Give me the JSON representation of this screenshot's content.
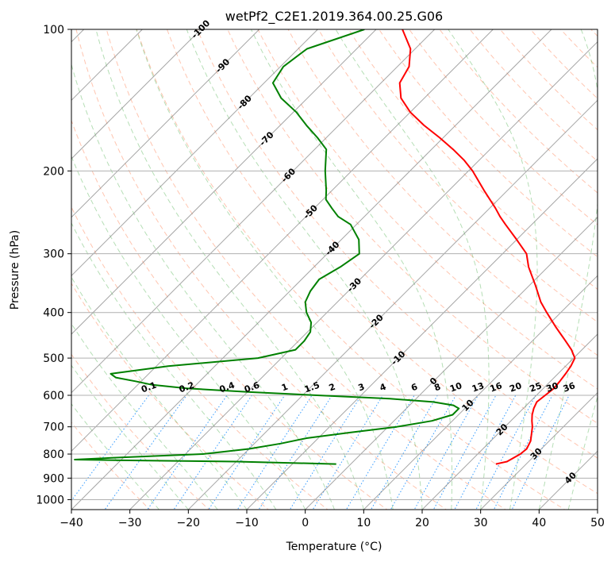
{
  "chart_data": {
    "type": "line",
    "subtype": "skew-t-log-p",
    "title": "wetPf2_C2E1.2019.364.00.25.G06",
    "xlabel": "Temperature (°C)",
    "ylabel": "Pressure (hPa)",
    "xlim": [
      -40,
      50
    ],
    "ylim": [
      1050,
      100
    ],
    "yscale": "log",
    "skew": 1.0,
    "grid": true,
    "x_ticks": [
      -40,
      -30,
      -20,
      -10,
      0,
      10,
      20,
      30,
      40,
      50
    ],
    "x_tick_labels": [
      "−40",
      "−30",
      "−20",
      "−10",
      "0",
      "10",
      "20",
      "30",
      "40",
      "50"
    ],
    "y_ticks": [
      100,
      200,
      300,
      400,
      500,
      600,
      700,
      800,
      900,
      1000
    ],
    "y_tick_labels": [
      "100",
      "200",
      "300",
      "400",
      "500",
      "600",
      "700",
      "800",
      "900",
      "1000"
    ],
    "series": [
      {
        "color": "#ff0000",
        "role": "temperature",
        "p": [
          840,
          830,
          800,
          780,
          750,
          700,
          680,
          660,
          640,
          620,
          600,
          580,
          560,
          540,
          520,
          500,
          480,
          460,
          450,
          430,
          400,
          380,
          350,
          320,
          300,
          280,
          260,
          250,
          240,
          220,
          200,
          190,
          180,
          170,
          160,
          150,
          140,
          130,
          120,
          110,
          100
        ],
        "t": [
          24.8,
          26.3,
          27.3,
          27.5,
          26.8,
          24.7,
          23.6,
          22.6,
          21.8,
          21.2,
          21.5,
          21.8,
          21.6,
          21.3,
          20.9,
          20.2,
          18.2,
          15.7,
          14.4,
          11.7,
          7.6,
          4.8,
          1.0,
          -3.3,
          -5.9,
          -10.0,
          -14.5,
          -16.8,
          -19.0,
          -24.0,
          -29.3,
          -32.5,
          -36.3,
          -40.6,
          -45.4,
          -50.0,
          -54.0,
          -56.8,
          -58.0,
          -60.8,
          -65.5
        ]
      },
      {
        "color": "#008000",
        "role": "dewpoint",
        "p": [
          840,
          830,
          825,
          822,
          815,
          800,
          780,
          760,
          740,
          720,
          700,
          680,
          660,
          640,
          630,
          620,
          610,
          600,
          590,
          580,
          570,
          560,
          550,
          540,
          520,
          500,
          480,
          460,
          440,
          420,
          400,
          380,
          360,
          340,
          320,
          300,
          280,
          260,
          250,
          240,
          230,
          220,
          200,
          180,
          170,
          160,
          150,
          140,
          130,
          120,
          110,
          100
        ],
        "td": [
          -2.5,
          -20.0,
          -40.0,
          -48.0,
          -42.0,
          -27.0,
          -20.0,
          -15.5,
          -12.0,
          -5.5,
          1.5,
          6.5,
          9.0,
          9.0,
          7.5,
          3.5,
          -4.5,
          -17.5,
          -30.0,
          -41.0,
          -47.5,
          -51.0,
          -55.0,
          -56.5,
          -48.0,
          -34.0,
          -29.0,
          -29.0,
          -29.5,
          -31.0,
          -33.5,
          -35.5,
          -36.5,
          -37.0,
          -35.5,
          -34.5,
          -37.0,
          -41.0,
          -44.5,
          -47.0,
          -49.5,
          -51.0,
          -54.5,
          -58.0,
          -61.5,
          -65.5,
          -69.5,
          -74.5,
          -78.5,
          -79.5,
          -78.5,
          -72.0
        ]
      }
    ],
    "isotherm_labels": [
      "-100",
      "-90",
      "-80",
      "-70",
      "-60",
      "-50",
      "-40",
      "-30",
      "-20",
      "-10",
      "0",
      "10",
      "20",
      "30",
      "40"
    ],
    "mixing_ratio_labels": [
      "0.1",
      "0.2",
      "0.4",
      "0.6",
      "1",
      "1.5",
      "2",
      "3",
      "4",
      "6",
      "8",
      "10",
      "13",
      "16",
      "20",
      "25",
      "30",
      "36"
    ],
    "colors": {
      "temperature": "#ff0000",
      "dewpoint": "#008000",
      "isotherm": "#808080",
      "dry_adiabat": "#ff7f50",
      "moist_adiabat": "#2ca02c",
      "mixing_ratio": "#1e90ff",
      "cold_isotherm_label": "#1f77b4",
      "zero_isotherm_label": "#808080",
      "warm_isotherm_label": "#d62728",
      "mixing_ratio_label": "#1e90ff"
    }
  }
}
